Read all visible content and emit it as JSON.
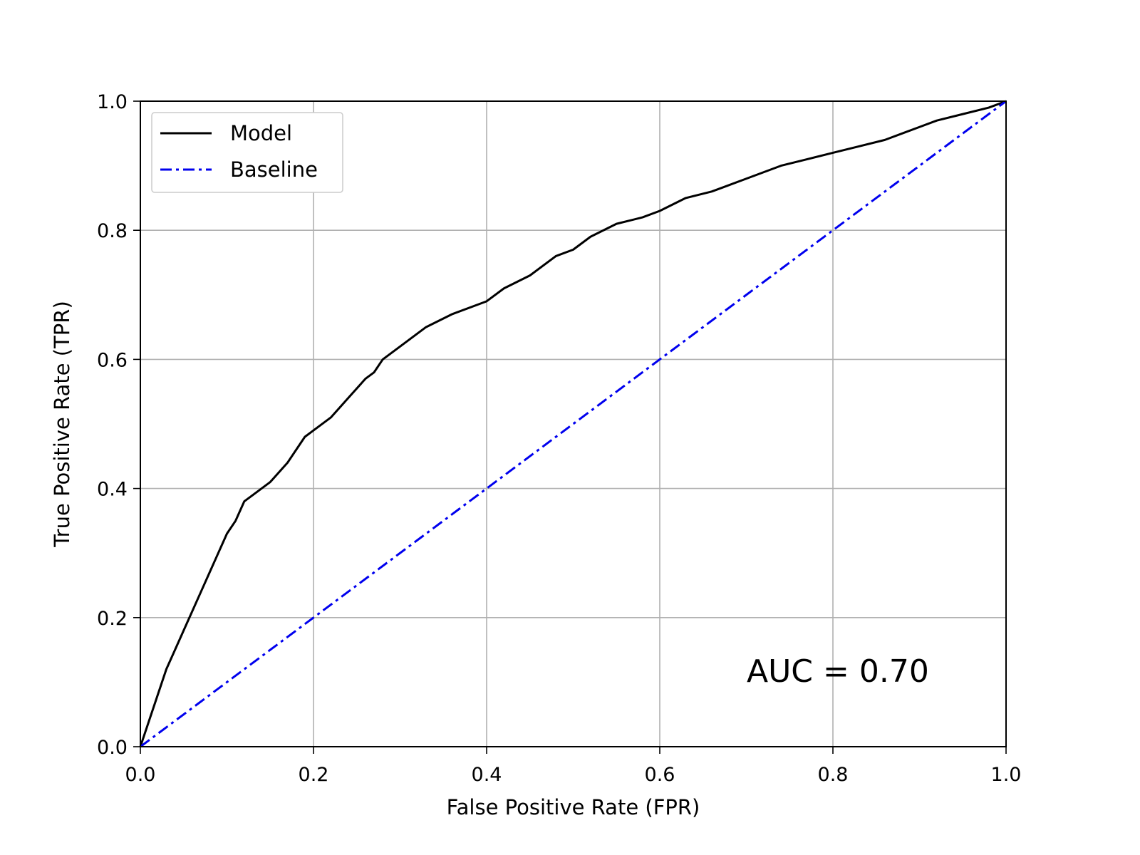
{
  "chart_data": {
    "type": "line",
    "xlabel": "False Positive Rate (FPR)",
    "ylabel": "True Positive Rate (TPR)",
    "xlim": [
      0.0,
      1.0
    ],
    "ylim": [
      0.0,
      1.0
    ],
    "xticks": [
      "0.0",
      "0.2",
      "0.4",
      "0.6",
      "0.8",
      "1.0"
    ],
    "yticks": [
      "0.0",
      "0.2",
      "0.4",
      "0.6",
      "0.8",
      "1.0"
    ],
    "grid": true,
    "legend_position": "top-left",
    "annotation": "AUC = 0.70",
    "series": [
      {
        "name": "Model",
        "color": "#000000",
        "style": "solid",
        "x": [
          0.0,
          0.01,
          0.02,
          0.03,
          0.04,
          0.05,
          0.06,
          0.07,
          0.08,
          0.09,
          0.1,
          0.11,
          0.12,
          0.13,
          0.15,
          0.17,
          0.18,
          0.19,
          0.2,
          0.22,
          0.24,
          0.26,
          0.27,
          0.28,
          0.3,
          0.33,
          0.36,
          0.4,
          0.42,
          0.45,
          0.48,
          0.5,
          0.52,
          0.55,
          0.58,
          0.6,
          0.63,
          0.66,
          0.7,
          0.74,
          0.77,
          0.8,
          0.83,
          0.86,
          0.9,
          0.92,
          0.95,
          0.98,
          1.0
        ],
        "y": [
          0.0,
          0.04,
          0.08,
          0.12,
          0.15,
          0.18,
          0.21,
          0.24,
          0.27,
          0.3,
          0.33,
          0.35,
          0.38,
          0.39,
          0.41,
          0.44,
          0.46,
          0.48,
          0.49,
          0.51,
          0.54,
          0.57,
          0.58,
          0.6,
          0.62,
          0.65,
          0.67,
          0.69,
          0.71,
          0.73,
          0.76,
          0.77,
          0.79,
          0.81,
          0.82,
          0.83,
          0.85,
          0.86,
          0.88,
          0.9,
          0.91,
          0.92,
          0.93,
          0.94,
          0.96,
          0.97,
          0.98,
          0.99,
          1.0
        ]
      },
      {
        "name": "Baseline",
        "color": "#0000ee",
        "style": "dashdot",
        "x": [
          0.0,
          1.0
        ],
        "y": [
          0.0,
          1.0
        ]
      }
    ]
  }
}
